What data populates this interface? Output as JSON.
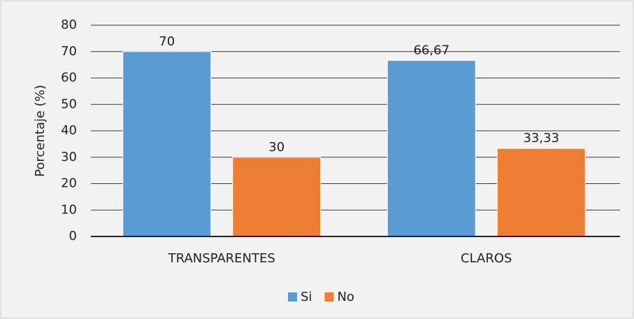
{
  "chart_data": {
    "type": "bar",
    "categories": [
      "TRANSPARENTES",
      "CLAROS"
    ],
    "series": [
      {
        "name": "Si",
        "color": "#5b9bd5",
        "values": [
          70,
          66.67
        ],
        "value_labels": [
          "70",
          "66,67"
        ]
      },
      {
        "name": "No",
        "color": "#ed7d31",
        "values": [
          30,
          33.33
        ],
        "value_labels": [
          "30",
          "33,33"
        ]
      }
    ],
    "y_label": "Porcentaje (%)",
    "ylim": [
      0,
      80
    ],
    "yticks": [
      0,
      10,
      20,
      30,
      40,
      50,
      60,
      70,
      80
    ],
    "grid": true,
    "legend": "bottom"
  }
}
